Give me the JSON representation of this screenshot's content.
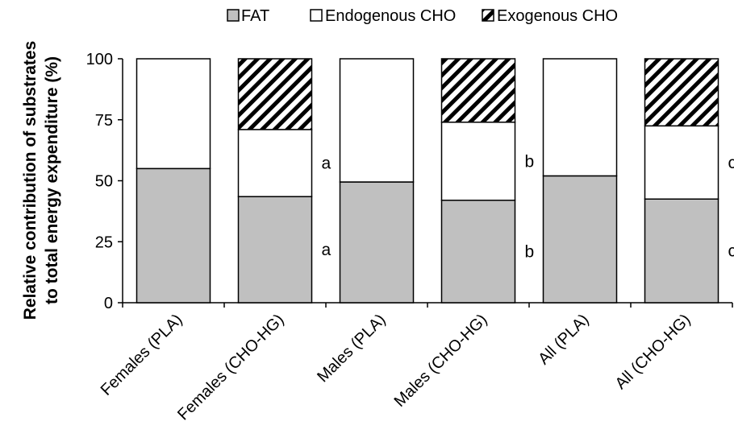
{
  "chart_data": {
    "type": "bar",
    "stacked": true,
    "categories": [
      "Females (PLA)",
      "Females (CHO-HG)",
      "Males (PLA)",
      "Males (CHO-HG)",
      "All (PLA)",
      "All (CHO-HG)"
    ],
    "series": [
      {
        "name": "FAT",
        "values": [
          55,
          43.5,
          49.5,
          42,
          52,
          42.5
        ],
        "color": "#c0c0c0",
        "pattern": "solid"
      },
      {
        "name": "Endogenous CHO",
        "values": [
          45,
          27.5,
          50.5,
          32,
          48,
          30
        ],
        "color": "#ffffff",
        "pattern": "solid"
      },
      {
        "name": "Exogenous CHO",
        "values": [
          0,
          29,
          0,
          26,
          0,
          27.5
        ],
        "color": "#000000",
        "pattern": "diagonal-hatch"
      }
    ],
    "ylabel": [
      "Relative contribution of substrates",
      "to total energy expenditure (%)"
    ],
    "xlabel": "",
    "ylim": [
      0,
      100
    ],
    "yticks": [
      "0",
      "25",
      "50",
      "75",
      "100"
    ],
    "grid": false,
    "legend_position": "top",
    "annotations": [
      {
        "category": "Females (CHO-HG)",
        "series": "FAT",
        "text": "a"
      },
      {
        "category": "Females (CHO-HG)",
        "series": "Endogenous CHO",
        "text": "a"
      },
      {
        "category": "Males (CHO-HG)",
        "series": "FAT",
        "text": "b"
      },
      {
        "category": "Males (CHO-HG)",
        "series": "Endogenous CHO",
        "text": "b"
      },
      {
        "category": "All (CHO-HG)",
        "series": "FAT",
        "text": "c"
      },
      {
        "category": "All (CHO-HG)",
        "series": "Endogenous CHO",
        "text": "c"
      }
    ]
  }
}
